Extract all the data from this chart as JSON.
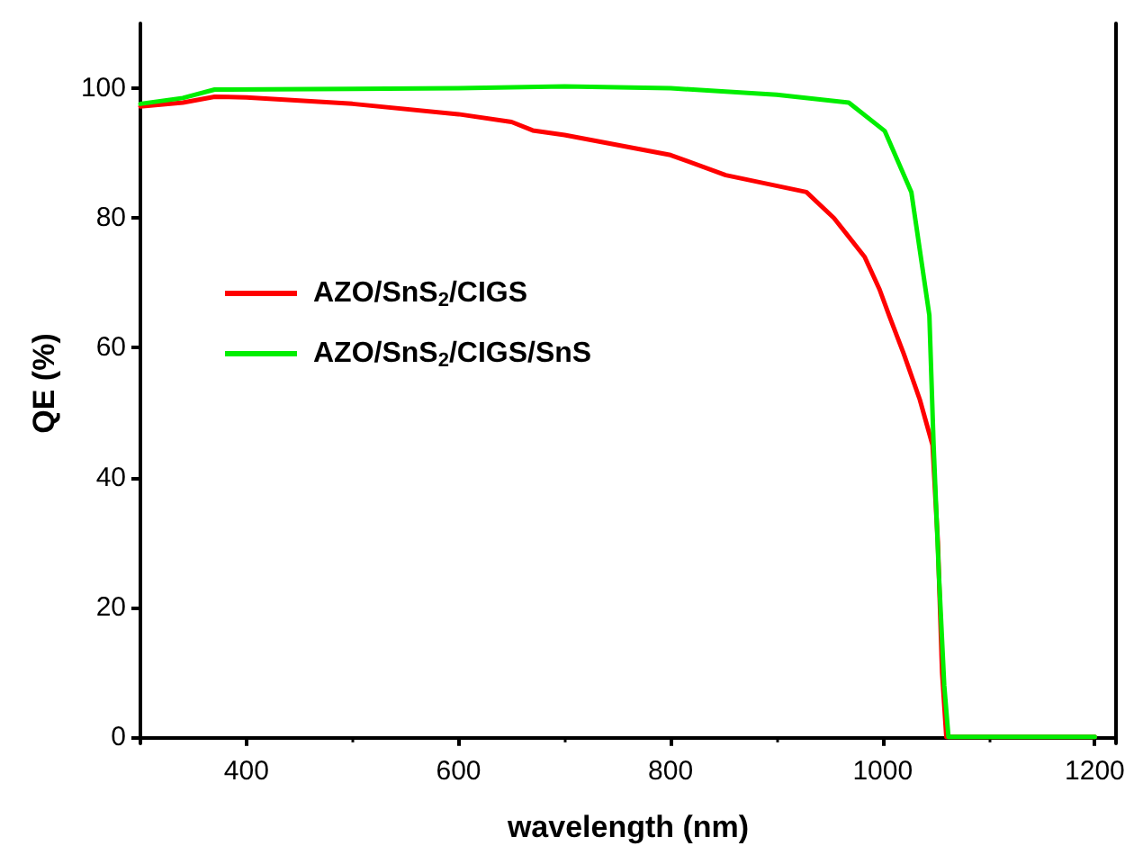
{
  "chart_data": {
    "type": "line",
    "xlabel": "wavelength (nm)",
    "ylabel": "QE (%)",
    "xlim": [
      300,
      1220
    ],
    "xticks": [
      400,
      600,
      800,
      1000,
      1200
    ],
    "ylim": [
      -1,
      110
    ],
    "yticks": [
      0,
      20,
      40,
      60,
      80,
      100
    ],
    "grid": false,
    "legend": "left",
    "marker": "none",
    "line_style": "solid",
    "series": [
      {
        "name": "AZO/SnS$_{2}$/CIGS",
        "color": "#ff0000",
        "x": [
          300,
          340,
          370,
          400,
          500,
          600,
          650,
          670,
          700,
          800,
          852,
          928,
          954,
          983,
          997,
          1006,
          1020,
          1035,
          1047,
          1052,
          1056,
          1060,
          1200
        ],
        "values": [
          97.2,
          97.8,
          98.7,
          98.6,
          97.6,
          96.0,
          94.8,
          93.5,
          92.8,
          89.7,
          86.6,
          84,
          80,
          74,
          69,
          65,
          59,
          52,
          45,
          30,
          10,
          0,
          0
        ]
      },
      {
        "name": "AZO/SnS$_{2}$/CIGS/SnS",
        "color": "#00ee00",
        "x": [
          300,
          340,
          370,
          500,
          600,
          700,
          800,
          900,
          968,
          1002,
          1027,
          1044,
          1048,
          1053,
          1058,
          1062,
          1200
        ],
        "values": [
          97.6,
          98.5,
          99.8,
          99.9,
          100,
          100.3,
          100,
          99,
          97.8,
          93.4,
          84,
          65,
          45,
          25,
          8,
          0,
          0
        ]
      }
    ]
  }
}
